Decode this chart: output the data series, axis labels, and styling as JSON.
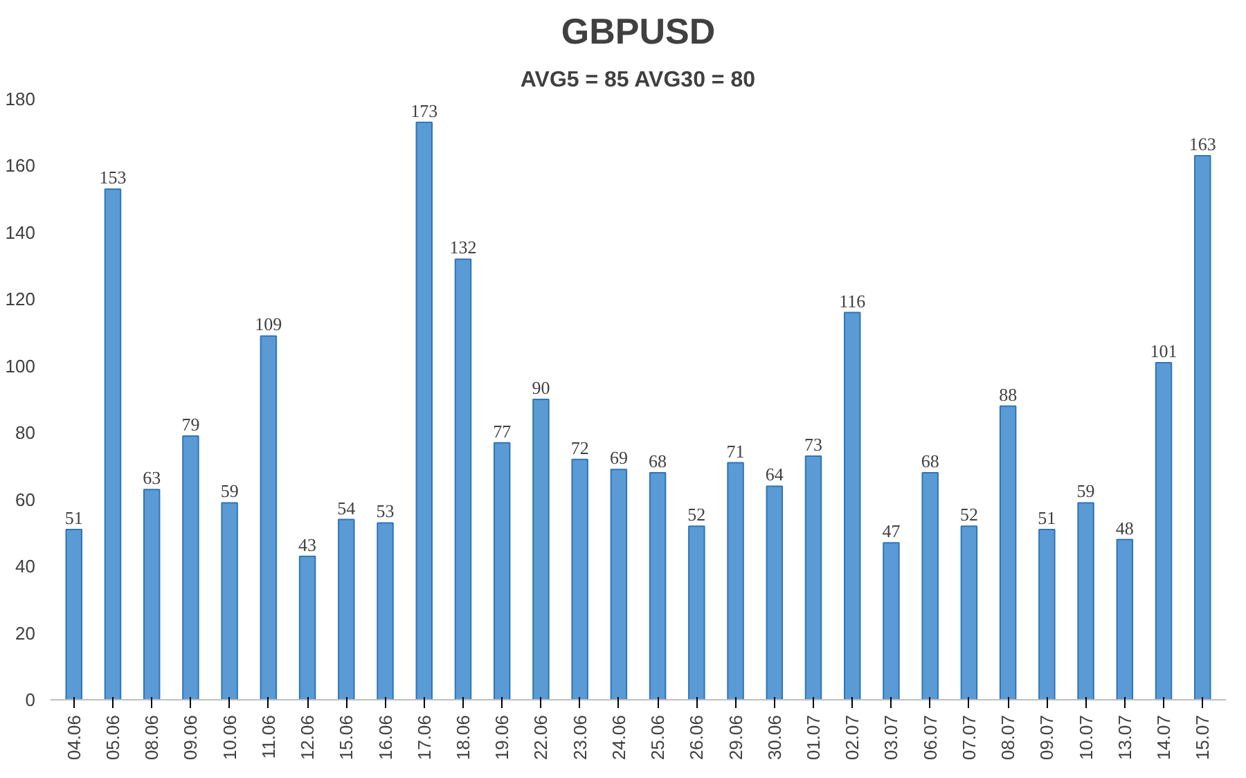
{
  "chart_data": {
    "type": "bar",
    "title": "GBPUSD",
    "subtitle": "AVG5 = 85 AVG30 = 80",
    "categories": [
      "04.06",
      "05.06",
      "08.06",
      "09.06",
      "10.06",
      "11.06",
      "12.06",
      "15.06",
      "16.06",
      "17.06",
      "18.06",
      "19.06",
      "22.06",
      "23.06",
      "24.06",
      "25.06",
      "26.06",
      "29.06",
      "30.06",
      "01.07",
      "02.07",
      "03.07",
      "06.07",
      "07.07",
      "08.07",
      "09.07",
      "10.07",
      "13.07",
      "14.07",
      "15.07"
    ],
    "values": [
      51,
      153,
      63,
      79,
      59,
      109,
      43,
      54,
      53,
      173,
      132,
      77,
      90,
      72,
      69,
      68,
      52,
      71,
      64,
      73,
      116,
      47,
      68,
      52,
      88,
      51,
      59,
      48,
      101,
      163
    ],
    "color": "#5b9bd5",
    "ylim": [
      0,
      180
    ],
    "yticks": [
      0,
      20,
      40,
      60,
      80,
      100,
      120,
      140,
      160,
      180
    ],
    "grid": false,
    "data_labels": true
  }
}
